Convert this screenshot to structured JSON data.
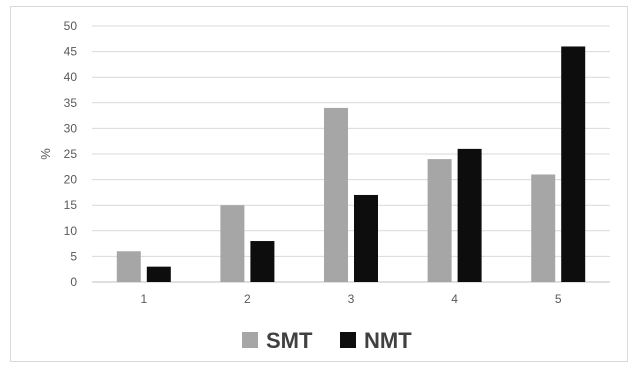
{
  "chart_data": {
    "type": "bar",
    "categories": [
      "1",
      "2",
      "3",
      "4",
      "5"
    ],
    "series": [
      {
        "name": "SMT",
        "values": [
          6,
          15,
          34,
          24,
          21
        ],
        "color": "#a6a6a6"
      },
      {
        "name": "NMT",
        "values": [
          3,
          8,
          17,
          26,
          46
        ],
        "color": "#0d0d0d"
      }
    ],
    "ylabel": "%",
    "xlabel": "",
    "ylim": [
      0,
      50
    ],
    "yticks": [
      0,
      5,
      10,
      15,
      20,
      25,
      30,
      35,
      40,
      45,
      50
    ],
    "grid": true,
    "legend": "bottom"
  }
}
